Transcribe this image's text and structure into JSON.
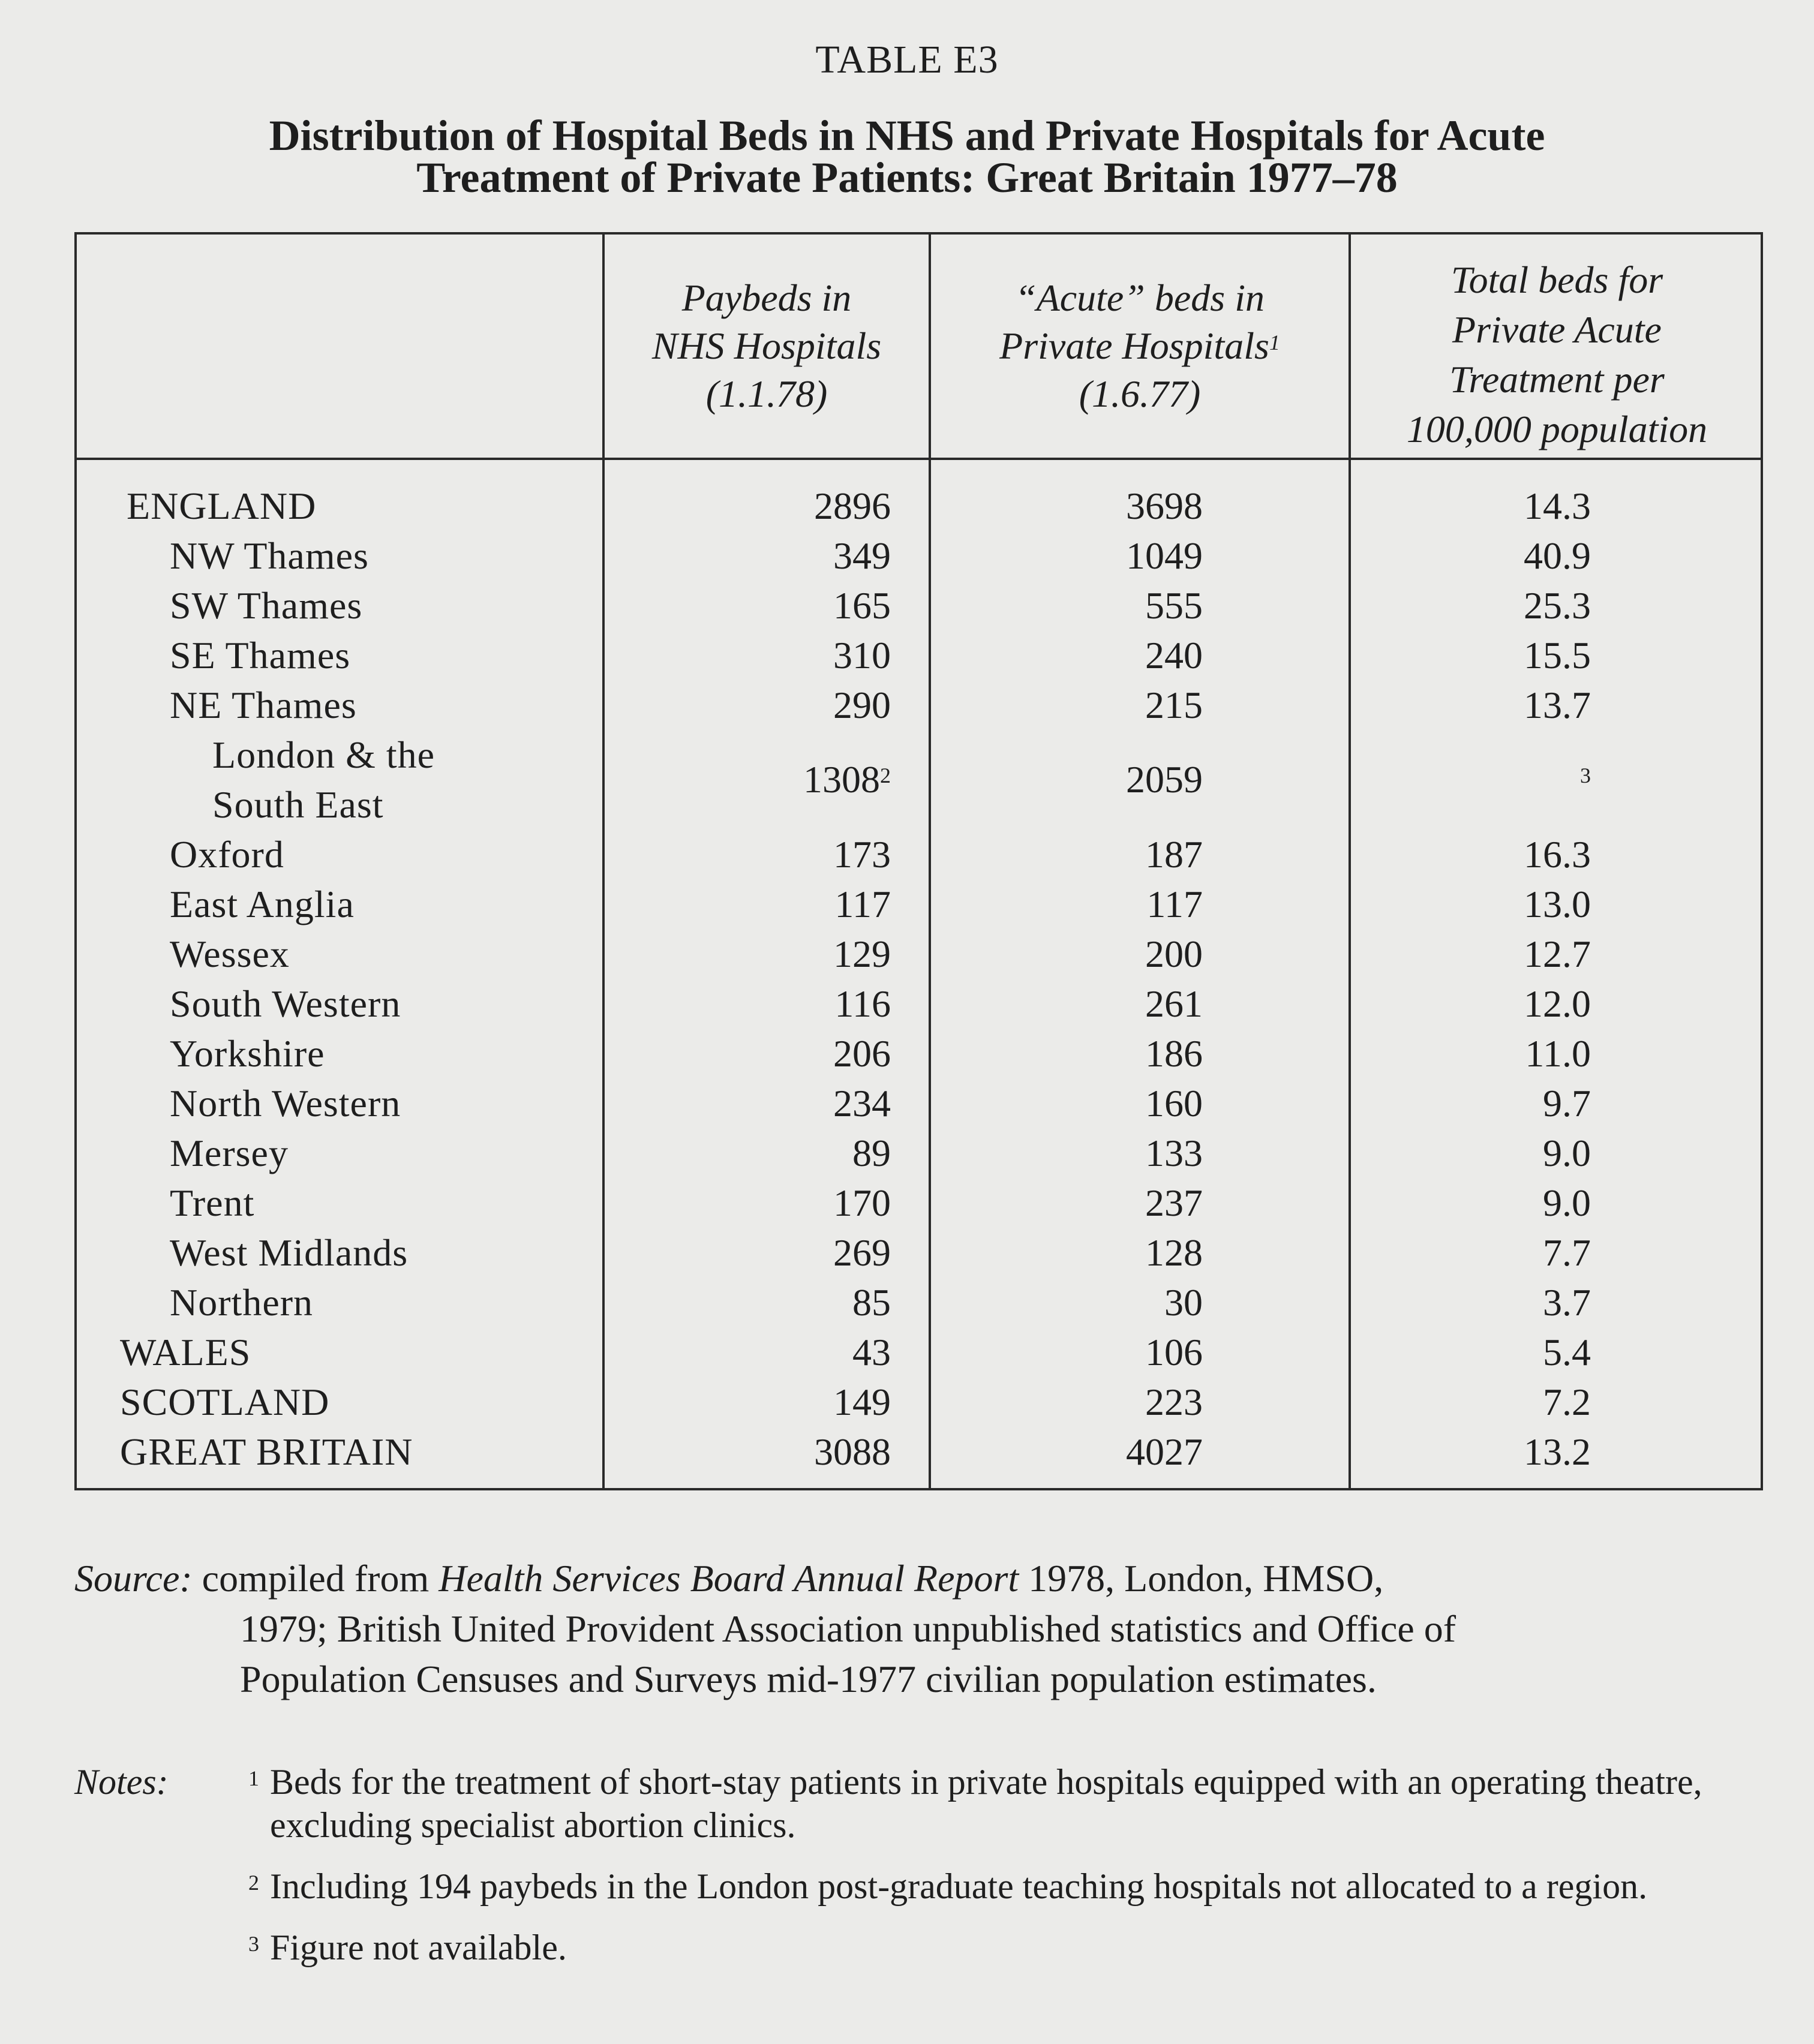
{
  "table_label": "TABLE E3",
  "title_lines": [
    "Distribution of Hospital Beds in NHS and Private Hospitals for Acute",
    "Treatment of Private Patients: Great Britain 1977–78"
  ],
  "columns": [
    {
      "lines": [
        "Paybeds in",
        "NHS Hospitals",
        "(1.1.78)"
      ]
    },
    {
      "lines": [
        "“Acute” beds in",
        "Private Hospitals",
        "(1.6.77)"
      ],
      "footnote": "1"
    },
    {
      "lines": [
        "Total beds for",
        "Private Acute",
        "Treatment per",
        "100,000 population"
      ]
    }
  ],
  "rows": [
    {
      "label": "ENGLAND",
      "level": 0,
      "paybeds": "2896",
      "private": "3698",
      "per100k": "14.3"
    },
    {
      "label": "NW Thames",
      "level": 1,
      "paybeds": "349",
      "private": "1049",
      "per100k": "40.9"
    },
    {
      "label": "SW Thames",
      "level": 1,
      "paybeds": "165",
      "private": "555",
      "per100k": "25.3"
    },
    {
      "label": "SE Thames",
      "level": 1,
      "paybeds": "310",
      "private": "240",
      "per100k": "15.5"
    },
    {
      "label": "NE Thames",
      "level": 1,
      "paybeds": "290",
      "private": "215",
      "per100k": "13.7"
    },
    {
      "label": "London & the South East",
      "label_lines": [
        "London & the",
        "South East"
      ],
      "level": 2,
      "paybeds": "1308",
      "paybeds_footnote": "2",
      "private": "2059",
      "per100k": "",
      "per100k_footnote": "3"
    },
    {
      "label": "Oxford",
      "level": 1,
      "paybeds": "173",
      "private": "187",
      "per100k": "16.3"
    },
    {
      "label": "East Anglia",
      "level": 1,
      "paybeds": "117",
      "private": "117",
      "per100k": "13.0"
    },
    {
      "label": "Wessex",
      "level": 1,
      "paybeds": "129",
      "private": "200",
      "per100k": "12.7"
    },
    {
      "label": "South Western",
      "level": 1,
      "paybeds": "116",
      "private": "261",
      "per100k": "12.0"
    },
    {
      "label": "Yorkshire",
      "level": 1,
      "paybeds": "206",
      "private": "186",
      "per100k": "11.0"
    },
    {
      "label": "North Western",
      "level": 1,
      "paybeds": "234",
      "private": "160",
      "per100k": "9.7"
    },
    {
      "label": "Mersey",
      "level": 1,
      "paybeds": "89",
      "private": "133",
      "per100k": "9.0"
    },
    {
      "label": "Trent",
      "level": 1,
      "paybeds": "170",
      "private": "237",
      "per100k": "9.0"
    },
    {
      "label": "West Midlands",
      "level": 1,
      "paybeds": "269",
      "private": "128",
      "per100k": "7.7"
    },
    {
      "label": "Northern",
      "level": 1,
      "paybeds": "85",
      "private": "30",
      "per100k": "3.7"
    },
    {
      "label": "WALES",
      "level": -1,
      "paybeds": "43",
      "private": "106",
      "per100k": "5.4"
    },
    {
      "label": "SCOTLAND",
      "level": -1,
      "paybeds": "149",
      "private": "223",
      "per100k": "7.2"
    },
    {
      "label": "GREAT BRITAIN",
      "level": -1,
      "paybeds": "3088",
      "private": "4027",
      "per100k": "13.2"
    }
  ],
  "source": {
    "label": "Source:",
    "pre": "compiled from",
    "report": "Health Services Board Annual Report",
    "post": "1978, London, HMSO,",
    "line2": "1979; British United Provident Association unpublished statistics and Office of",
    "line3": "Population Censuses and Surveys mid-1977 civilian population estimates."
  },
  "notes": {
    "label": "Notes:",
    "items": [
      {
        "num": "1",
        "text": "Beds for the treatment of short-stay patients in private hospitals equipped with an operating theatre, excluding specialist abortion clinics."
      },
      {
        "num": "2",
        "text": "Including 194 paybeds in the London post-graduate teaching hospitals not allocated to a region."
      },
      {
        "num": "3",
        "text": "Figure not available."
      }
    ]
  }
}
